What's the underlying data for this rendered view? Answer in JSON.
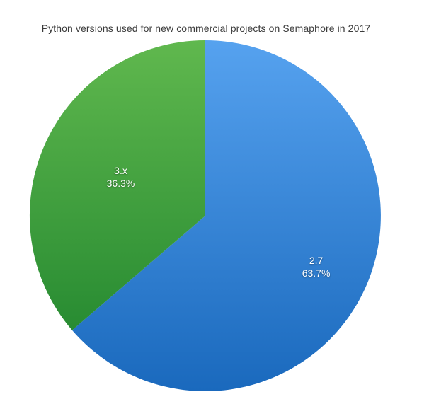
{
  "page": {
    "background": "#ffffff"
  },
  "chart_data": {
    "type": "pie",
    "title": "Python versions used for new commercial projects on Semaphore in 2017",
    "title_color": "#3b3b3b",
    "start_angle_deg": 0,
    "direction": "clockwise",
    "labels_position": "inside",
    "legend_position": "none",
    "label_text_color": "#ffffff",
    "slices": [
      {
        "label": "2.7",
        "value_pct": 63.7,
        "pct_label": "63.7%",
        "color_top": "#56a2ef",
        "color_bottom": "#1a69bd"
      },
      {
        "label": "3.x",
        "value_pct": 36.3,
        "pct_label": "36.3%",
        "color_top": "#60b84e",
        "color_bottom": "#1c822c"
      }
    ]
  }
}
